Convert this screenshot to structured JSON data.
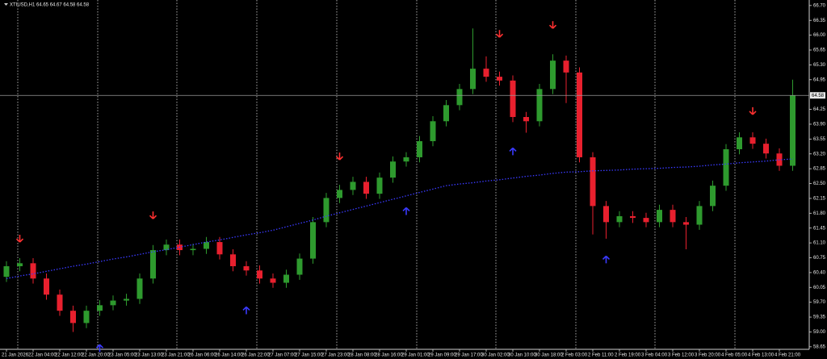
{
  "chart_data": {
    "type": "candlestick",
    "title": "XTIUSD,H1  64.65 64.67 64.58 64.58",
    "categories": [
      "21 Jan 2026",
      null,
      "22 Jan 04:00",
      null,
      "22 Jan 12:00",
      null,
      "22 Jan 20:00",
      null,
      "23 Jan 05:00",
      null,
      "23 Jan 13:00",
      null,
      "23 Jan 21:00",
      null,
      "26 Jan 06:00",
      null,
      "26 Jan 14:00",
      null,
      "26 Jan 22:00",
      null,
      "27 Jan 07:00",
      null,
      "27 Jan 15:00",
      null,
      "27 Jan 23:00",
      null,
      "28 Jan 08:00",
      null,
      "28 Jan 16:00",
      null,
      "29 Jan 01:00",
      null,
      "29 Jan 09:00",
      null,
      "29 Jan 17:00",
      null,
      "30 Jan 02:00",
      null,
      "30 Jan 10:00",
      null,
      "30 Jan 18:00",
      null,
      "2 Feb 03:00",
      null,
      "2 Feb 11:00",
      null,
      "2 Feb 19:00",
      null,
      "3 Feb 04:00",
      null,
      "3 Feb 12:00",
      null,
      "3 Feb 20:00",
      null,
      "4 Feb 05:00",
      null,
      "4 Feb 13:00",
      null,
      "4 Feb 21:00",
      null
    ],
    "open": [
      60.3,
      60.55,
      60.62,
      60.26,
      59.88,
      59.5,
      59.21,
      59.5,
      59.63,
      59.74,
      59.78,
      60.26,
      60.93,
      61.06,
      60.93,
      60.96,
      61.12,
      60.83,
      60.55,
      60.45,
      60.26,
      60.16,
      60.35,
      60.73,
      61.59,
      62.16,
      62.35,
      62.54,
      62.26,
      62.64,
      63.02,
      63.12,
      63.5,
      63.97,
      64.35,
      64.73,
      65.21,
      65.02,
      64.93,
      64.07,
      63.97,
      64.73,
      65.4,
      65.12,
      63.12,
      61.97,
      61.59,
      61.73,
      61.69,
      61.59,
      61.88,
      61.59,
      61.53,
      61.97,
      62.45,
      63.31,
      63.59,
      63.44,
      63.21,
      62.92
    ],
    "high": [
      60.67,
      60.74,
      60.74,
      60.38,
      60.0,
      59.62,
      59.62,
      59.75,
      59.86,
      59.9,
      60.38,
      61.05,
      61.18,
      61.18,
      61.08,
      61.24,
      61.24,
      60.95,
      60.67,
      60.57,
      60.38,
      60.47,
      60.85,
      61.71,
      62.28,
      62.47,
      62.66,
      62.66,
      62.76,
      63.14,
      63.24,
      63.62,
      64.09,
      64.47,
      64.85,
      66.16,
      65.5,
      65.14,
      65.05,
      64.19,
      64.85,
      65.55,
      65.52,
      65.24,
      63.24,
      62.09,
      61.85,
      61.85,
      61.81,
      62.0,
      62.0,
      61.71,
      62.09,
      62.57,
      63.43,
      63.71,
      63.71,
      63.56,
      63.33,
      64.95
    ],
    "low": [
      60.18,
      60.43,
      60.14,
      59.76,
      59.38,
      59.0,
      59.09,
      59.38,
      59.51,
      59.62,
      59.66,
      60.14,
      60.81,
      60.81,
      60.81,
      60.84,
      60.71,
      60.43,
      60.33,
      60.14,
      60.04,
      60.04,
      60.23,
      60.61,
      61.47,
      62.04,
      62.23,
      62.14,
      62.14,
      62.52,
      62.9,
      63.0,
      63.38,
      63.85,
      64.23,
      64.61,
      64.9,
      64.81,
      63.95,
      63.7,
      63.85,
      64.61,
      64.4,
      63.0,
      61.3,
      61.2,
      61.47,
      61.57,
      61.47,
      61.47,
      61.47,
      60.95,
      61.41,
      61.85,
      62.33,
      63.19,
      63.32,
      63.09,
      62.8,
      62.8
    ],
    "close": [
      60.55,
      60.62,
      60.26,
      59.88,
      59.5,
      59.21,
      59.5,
      59.63,
      59.74,
      59.78,
      60.26,
      60.93,
      61.06,
      60.93,
      60.96,
      61.12,
      60.83,
      60.55,
      60.45,
      60.26,
      60.16,
      60.35,
      60.73,
      61.59,
      62.16,
      62.35,
      62.54,
      62.26,
      62.64,
      63.02,
      63.12,
      63.5,
      63.97,
      64.35,
      64.73,
      65.21,
      65.02,
      64.93,
      64.07,
      63.97,
      64.73,
      65.4,
      65.12,
      63.12,
      61.97,
      61.59,
      61.73,
      61.69,
      61.59,
      61.88,
      61.59,
      61.53,
      61.97,
      62.45,
      63.31,
      63.59,
      63.44,
      63.21,
      62.92,
      64.58
    ],
    "up_color": "#2e9a2e",
    "down_color": "#e8202e",
    "ma": {
      "color": "#3a3aff",
      "values": [
        60.26,
        60.32,
        60.37,
        60.43,
        60.49,
        60.55,
        60.6,
        60.66,
        60.72,
        60.77,
        60.83,
        60.89,
        60.94,
        61.0,
        61.06,
        61.12,
        61.17,
        61.23,
        61.29,
        61.34,
        61.4,
        61.48,
        61.56,
        61.64,
        61.73,
        61.81,
        61.89,
        61.97,
        62.05,
        62.13,
        62.21,
        62.29,
        62.37,
        62.45,
        62.49,
        62.52,
        62.56,
        62.59,
        62.63,
        62.67,
        62.7,
        62.74,
        62.77,
        62.78,
        62.8,
        62.81,
        62.82,
        62.84,
        62.85,
        62.86,
        62.88,
        62.89,
        62.91,
        62.94,
        62.96,
        62.99,
        63.01,
        63.03,
        63.06,
        63.08
      ]
    },
    "sell_signals": {
      "color": "#ff3030",
      "values": [
        null,
        61.12,
        null,
        null,
        null,
        null,
        null,
        null,
        null,
        null,
        null,
        61.67,
        null,
        null,
        null,
        null,
        null,
        null,
        null,
        null,
        null,
        null,
        null,
        null,
        null,
        63.06,
        null,
        null,
        null,
        null,
        null,
        null,
        null,
        null,
        null,
        null,
        null,
        65.95,
        null,
        null,
        null,
        66.16,
        null,
        null,
        null,
        null,
        null,
        null,
        null,
        null,
        null,
        null,
        null,
        null,
        null,
        null,
        64.13,
        null,
        null,
        null
      ]
    },
    "buy_signals": {
      "color": "#3a3aff",
      "values": [
        null,
        null,
        null,
        null,
        null,
        null,
        null,
        58.7,
        null,
        null,
        null,
        null,
        null,
        null,
        null,
        null,
        null,
        null,
        59.59,
        null,
        null,
        null,
        null,
        null,
        null,
        null,
        null,
        null,
        null,
        null,
        61.93,
        null,
        null,
        null,
        null,
        null,
        null,
        null,
        63.34,
        null,
        null,
        null,
        null,
        null,
        null,
        60.79,
        null,
        null,
        null,
        null,
        null,
        null,
        null,
        null,
        null,
        null,
        null,
        null,
        null,
        null
      ]
    },
    "ylim": [
      58.59,
      66.83
    ],
    "yticks": [
      {
        "value": 66.7,
        "label": "66.70"
      },
      66.35,
      {
        "value": 66,
        "label": "66.00"
      },
      65.65,
      {
        "value": 65.3,
        "label": "65.30"
      },
      64.95,
      64.25,
      {
        "value": 63.9,
        "label": "63.90"
      },
      63.55,
      {
        "value": 63.2,
        "label": "63.20"
      },
      62.85,
      {
        "value": 62.5,
        "label": "62.50"
      },
      62.15,
      {
        "value": 61.8,
        "label": "61.80"
      },
      61.45,
      {
        "value": 61.1,
        "label": "61.10"
      },
      60.75,
      {
        "value": 60.4,
        "label": "60.40"
      },
      60.05,
      {
        "value": 59.7,
        "label": "59.70"
      },
      59.35,
      {
        "value": 59,
        "label": "59.00"
      },
      58.65
    ],
    "current_price": 64.58
  }
}
